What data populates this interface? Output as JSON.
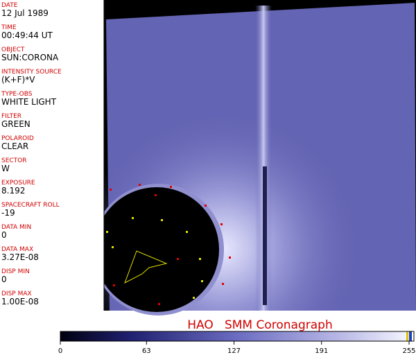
{
  "fields": [
    {
      "label": "DATE",
      "value": "12 Jul 1989"
    },
    {
      "label": "TIME",
      "value": "00:49:44 UT"
    },
    {
      "label": "OBJECT",
      "value": "SUN:CORONA"
    },
    {
      "label": "INTENSITY SOURCE",
      "value": "(K+F)*V"
    },
    {
      "label": "TYPE-OBS",
      "value": "WHITE LIGHT"
    },
    {
      "label": "FILTER",
      "value": "GREEN"
    },
    {
      "label": "POLAROID",
      "value": "CLEAR"
    },
    {
      "label": "SECTOR",
      "value": "W"
    },
    {
      "label": "EXPOSURE",
      "value": "8.192"
    },
    {
      "label": "SPACECRAFT ROLL",
      "value": "-19"
    },
    {
      "label": "DATA MIN",
      "value": "0"
    },
    {
      "label": "DATA MAX",
      "value": "3.27E-08"
    },
    {
      "label": "DISP MIN",
      "value": "0"
    },
    {
      "label": "DISP MAX",
      "value": "1.00E-08"
    }
  ],
  "title": "HAO   SMM Coronagraph",
  "colorbar": {
    "range": [
      0,
      255
    ],
    "ticks": [
      0,
      63,
      127,
      191,
      255
    ]
  }
}
